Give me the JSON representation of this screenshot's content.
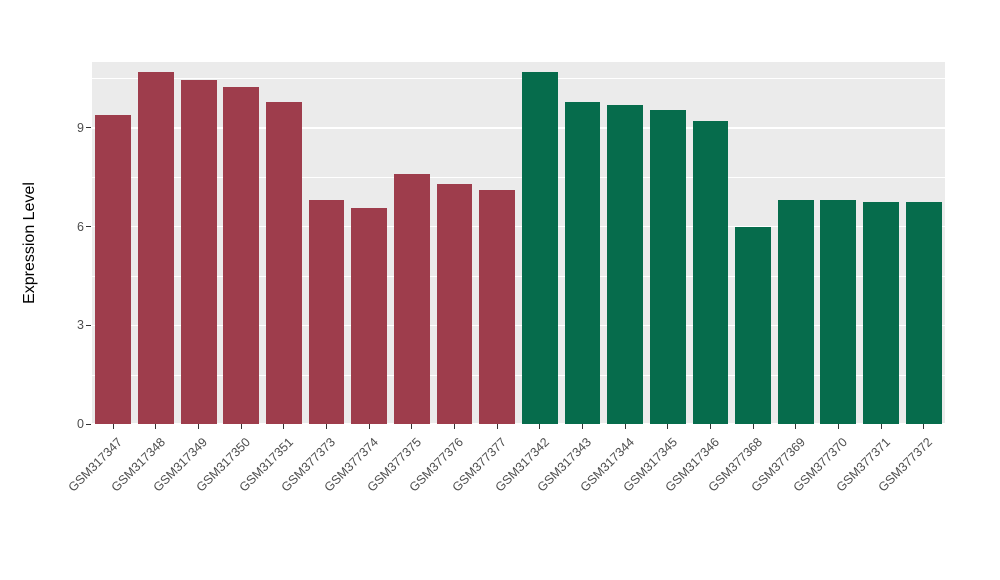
{
  "chart_data": {
    "type": "bar",
    "title": "",
    "xlabel": "",
    "ylabel": "Expression Level",
    "ylim": [
      0,
      11
    ],
    "yticks": [
      0,
      3,
      6,
      9
    ],
    "yticks_minor": [
      1.5,
      4.5,
      7.5,
      10.5
    ],
    "grid": true,
    "legend_position": "none",
    "panel_background": "#EBEBEB",
    "gridline_color": "#FFFFFF",
    "group_colors": {
      "left": "#9E3D4C",
      "right": "#066C4C"
    },
    "categories": [
      "GSM317347",
      "GSM317348",
      "GSM317349",
      "GSM317350",
      "GSM317351",
      "GSM377373",
      "GSM377374",
      "GSM377375",
      "GSM377376",
      "GSM377377",
      "GSM317342",
      "GSM317343",
      "GSM317344",
      "GSM317345",
      "GSM317346",
      "GSM377368",
      "GSM377369",
      "GSM377370",
      "GSM377371",
      "GSM377372"
    ],
    "values": [
      9.4,
      10.7,
      10.45,
      10.25,
      9.8,
      6.8,
      6.55,
      7.6,
      7.3,
      7.1,
      10.7,
      9.8,
      9.7,
      9.55,
      9.2,
      6.0,
      6.8,
      6.8,
      6.75,
      6.75
    ],
    "groups": [
      "left",
      "left",
      "left",
      "left",
      "left",
      "left",
      "left",
      "left",
      "left",
      "left",
      "right",
      "right",
      "right",
      "right",
      "right",
      "right",
      "right",
      "right",
      "right",
      "right"
    ]
  }
}
